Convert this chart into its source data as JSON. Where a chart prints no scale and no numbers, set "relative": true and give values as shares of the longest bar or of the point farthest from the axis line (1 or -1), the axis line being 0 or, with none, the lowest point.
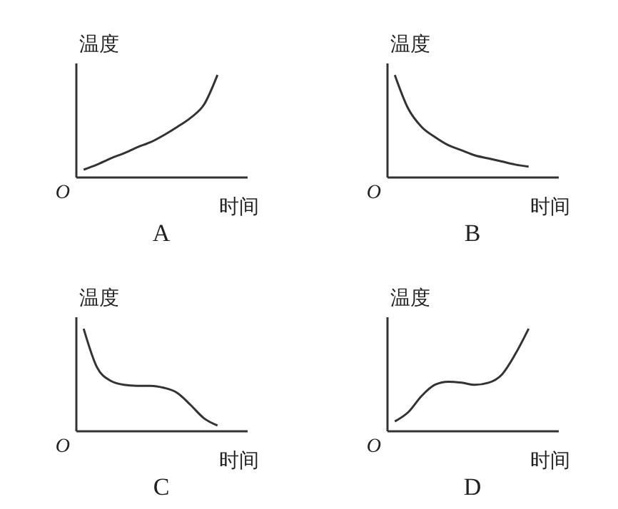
{
  "chart_data": [
    {
      "type": "line",
      "title": "A",
      "xlabel": "时间",
      "ylabel": "温度",
      "annotations": [
        "O"
      ],
      "relative": true,
      "color": "#333333",
      "categories": [
        null,
        null,
        null,
        null,
        null,
        null,
        null,
        null,
        null,
        null,
        null
      ],
      "values": [
        0.07,
        0.12,
        0.18,
        0.23,
        0.29,
        0.34,
        0.41,
        0.49,
        0.58,
        0.71,
        1.0
      ]
    },
    {
      "type": "line",
      "title": "B",
      "xlabel": "时间",
      "ylabel": "温度",
      "annotations": [
        "O"
      ],
      "relative": true,
      "color": "#333333",
      "categories": [
        null,
        null,
        null,
        null,
        null,
        null,
        null,
        null,
        null,
        null,
        null
      ],
      "values": [
        1.0,
        0.67,
        0.49,
        0.39,
        0.31,
        0.26,
        0.21,
        0.18,
        0.15,
        0.12,
        0.1
      ]
    },
    {
      "type": "line",
      "title": "C",
      "xlabel": "时间",
      "ylabel": "温度",
      "annotations": [
        "O"
      ],
      "relative": true,
      "color": "#333333",
      "categories": [
        null,
        null,
        null,
        null,
        null,
        null,
        null,
        null,
        null,
        null,
        null
      ],
      "values": [
        1.0,
        0.62,
        0.49,
        0.45,
        0.44,
        0.44,
        0.42,
        0.37,
        0.25,
        0.12,
        0.05
      ]
    },
    {
      "type": "line",
      "title": "D",
      "xlabel": "时间",
      "ylabel": "温度",
      "annotations": [
        "O"
      ],
      "relative": true,
      "color": "#333333",
      "categories": [
        null,
        null,
        null,
        null,
        null,
        null,
        null,
        null,
        null,
        null,
        null
      ],
      "values": [
        0.09,
        0.18,
        0.34,
        0.45,
        0.48,
        0.47,
        0.45,
        0.47,
        0.55,
        0.75,
        1.0
      ]
    }
  ]
}
